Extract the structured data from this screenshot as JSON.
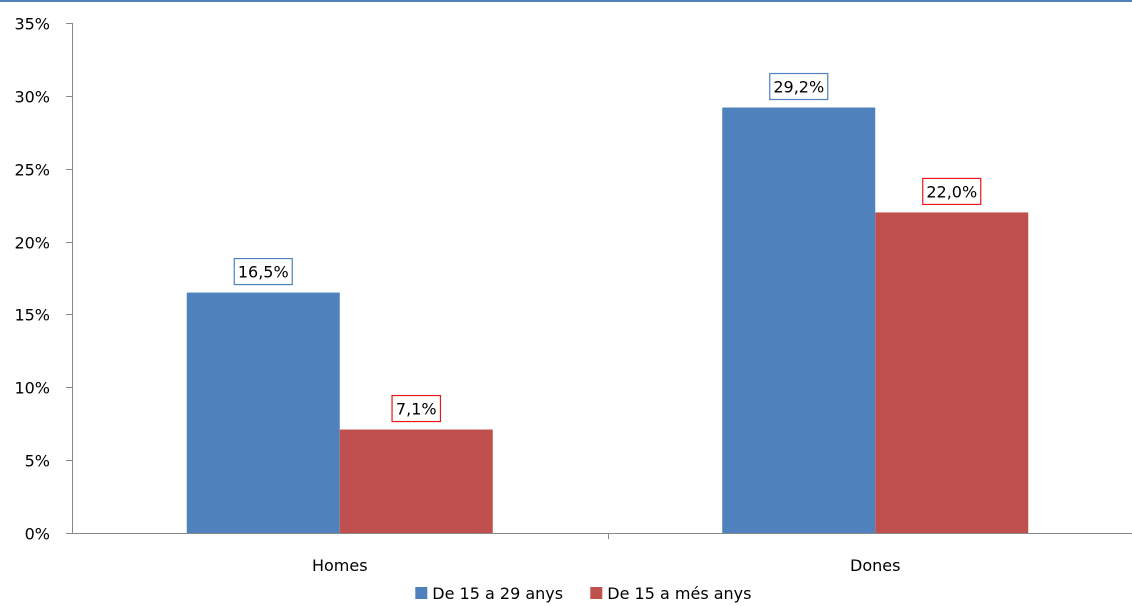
{
  "chart_data": {
    "type": "bar",
    "categories": [
      "Homes",
      "Dones"
    ],
    "series": [
      {
        "name": "De 15 a 29 anys",
        "values": [
          16.5,
          29.2
        ],
        "labels": [
          "16,5%",
          "29,2%"
        ],
        "color": "#4f81bd",
        "label_border": "#4f81bd"
      },
      {
        "name": "De 15 a més anys",
        "values": [
          7.1,
          22.0
        ],
        "labels": [
          "7,1%",
          "22,0%"
        ],
        "color": "#c0504d",
        "label_border": "#e8171c"
      }
    ],
    "ylim": [
      0,
      35
    ],
    "yticks": [
      0,
      5,
      10,
      15,
      20,
      25,
      30,
      35
    ],
    "ytick_labels": [
      "0%",
      "5%",
      "10%",
      "15%",
      "20%",
      "25%",
      "30%",
      "35%"
    ],
    "title": "",
    "xlabel": "",
    "ylabel": "",
    "grid": false,
    "legend": "bottom"
  }
}
